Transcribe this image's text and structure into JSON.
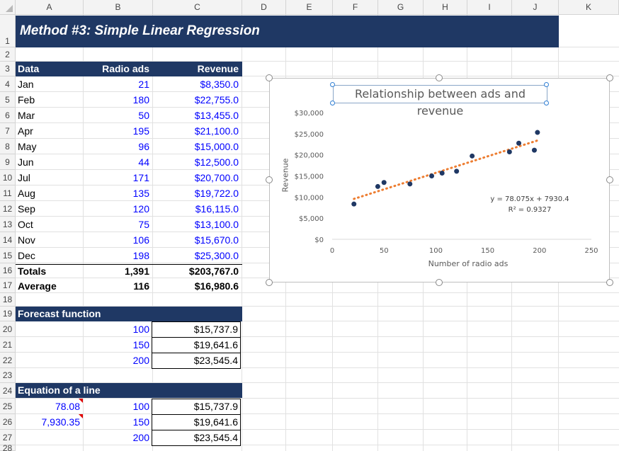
{
  "columns": [
    "A",
    "B",
    "C",
    "D",
    "E",
    "F",
    "G",
    "H",
    "I",
    "J",
    "K"
  ],
  "rows": [
    "1",
    "2",
    "3",
    "4",
    "5",
    "6",
    "7",
    "8",
    "9",
    "10",
    "11",
    "12",
    "13",
    "14",
    "15",
    "16",
    "17",
    "18",
    "19",
    "20",
    "21",
    "22",
    "23",
    "24",
    "25",
    "26",
    "27",
    "28"
  ],
  "title": "Method #3: Simple Linear Regression",
  "table": {
    "headers": {
      "data": "Data",
      "radio": "Radio ads",
      "revenue": "Revenue"
    },
    "rows": [
      {
        "month": "Jan",
        "ads": "21",
        "rev": "$8,350.0"
      },
      {
        "month": "Feb",
        "ads": "180",
        "rev": "$22,755.0"
      },
      {
        "month": "Mar",
        "ads": "50",
        "rev": "$13,455.0"
      },
      {
        "month": "Apr",
        "ads": "195",
        "rev": "$21,100.0"
      },
      {
        "month": "May",
        "ads": "96",
        "rev": "$15,000.0"
      },
      {
        "month": "Jun",
        "ads": "44",
        "rev": "$12,500.0"
      },
      {
        "month": "Jul",
        "ads": "171",
        "rev": "$20,700.0"
      },
      {
        "month": "Aug",
        "ads": "135",
        "rev": "$19,722.0"
      },
      {
        "month": "Sep",
        "ads": "120",
        "rev": "$16,115.0"
      },
      {
        "month": "Oct",
        "ads": "75",
        "rev": "$13,100.0"
      },
      {
        "month": "Nov",
        "ads": "106",
        "rev": "$15,670.0"
      },
      {
        "month": "Dec",
        "ads": "198",
        "rev": "$25,300.0"
      }
    ],
    "totals": {
      "label": "Totals",
      "ads": "1,391",
      "rev": "$203,767.0"
    },
    "average": {
      "label": "Average",
      "ads": "116",
      "rev": "$16,980.6"
    }
  },
  "forecast": {
    "title": "Forecast function",
    "rows": [
      {
        "ads": "100",
        "rev": "$15,737.9"
      },
      {
        "ads": "150",
        "rev": "$19,641.6"
      },
      {
        "ads": "200",
        "rev": "$23,545.4"
      }
    ]
  },
  "equation": {
    "title": "Equation of a line",
    "slope": "78.08",
    "intercept": "7,930.35",
    "rows": [
      {
        "ads": "100",
        "rev": "$15,737.9"
      },
      {
        "ads": "150",
        "rev": "$19,641.6"
      },
      {
        "ads": "200",
        "rev": "$23,545.4"
      }
    ]
  },
  "colors": {
    "band": "#1f3864",
    "marker": "#1f3864",
    "trend": "#ed7d31",
    "input": "#0000ff"
  },
  "chart_data": {
    "type": "scatter",
    "title": "Relationship between ads and revenue",
    "xlabel": "Number of radio ads",
    "ylabel": "Revenue",
    "xlim": [
      0,
      250
    ],
    "ylim": [
      0,
      30000
    ],
    "xticks": [
      "0",
      "50",
      "100",
      "150",
      "200",
      "250"
    ],
    "yticks": [
      "$0",
      "$5,000",
      "$10,000",
      "$15,000",
      "$20,000",
      "$25,000",
      "$30,000"
    ],
    "x": [
      21,
      180,
      50,
      195,
      96,
      44,
      171,
      135,
      120,
      75,
      106,
      198
    ],
    "y": [
      8350,
      22755,
      13455,
      21100,
      15000,
      12500,
      20700,
      19722,
      16115,
      13100,
      15670,
      25300
    ],
    "trendline": {
      "slope": 78.075,
      "intercept": 7930.4,
      "x_range": [
        21,
        198
      ]
    },
    "equation_label": "y = 78.075x + 7930.4",
    "r2_label": "R² = 0.9327",
    "grid": false,
    "legend": "none"
  }
}
